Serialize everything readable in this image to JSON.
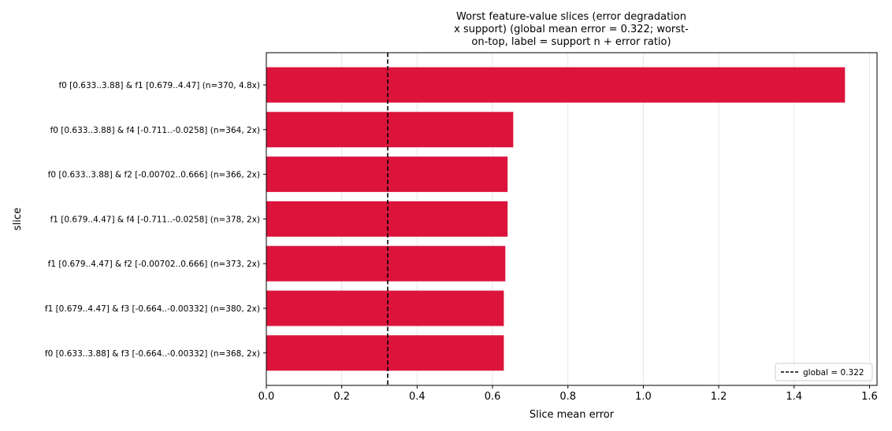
{
  "chart_data": {
    "type": "bar",
    "orientation": "horizontal",
    "title_lines": [
      "Worst feature-value slices (error degradation",
      "x support) (global mean error = 0.322; worst-",
      "on-top, label = support n + error ratio)"
    ],
    "xlabel": "Slice mean error",
    "ylabel": "slice",
    "xlim": [
      0,
      1.62
    ],
    "xticks": [
      "0.0",
      "0.2",
      "0.4",
      "0.6",
      "0.8",
      "1.0",
      "1.2",
      "1.4",
      "1.6"
    ],
    "grid": "vertical",
    "bar_color": "#dc143c",
    "categories": [
      "f0 [0.633..3.88] & f1 [0.679..4.47]  (n=370, 4.8x)",
      "f0 [0.633..3.88] & f4 [-0.711..-0.0258]  (n=364, 2x)",
      "f0 [0.633..3.88] & f2 [-0.00702..0.666]  (n=366, 2x)",
      "f1 [0.679..4.47] & f4 [-0.711..-0.0258]  (n=378, 2x)",
      "f1 [0.679..4.47] & f2 [-0.00702..0.666]  (n=373, 2x)",
      "f1 [0.679..4.47] & f3 [-0.664..-0.00332]  (n=380, 2x)",
      "f0 [0.633..3.88] & f3 [-0.664..-0.00332]  (n=368, 2x)"
    ],
    "values": [
      1.535,
      0.655,
      0.64,
      0.64,
      0.634,
      0.63,
      0.63
    ],
    "reference_line": {
      "value": 0.322,
      "label": "global = 0.322",
      "style": "dashed",
      "color": "#000000"
    },
    "legend": {
      "position": "lower-right",
      "entries": [
        "global = 0.322"
      ]
    }
  }
}
